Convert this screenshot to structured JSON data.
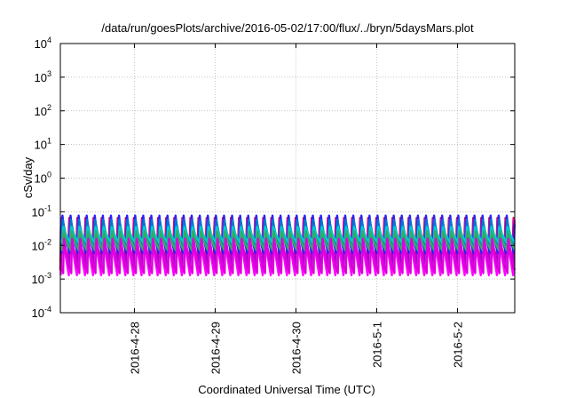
{
  "chart_data": {
    "type": "line",
    "title": "/data/run/goesPlots/archive/2016-05-02/17:00/flux/../bryn/5daysMars.plot",
    "xlabel": "Coordinated Universal Time (UTC)",
    "ylabel": "cSv/day",
    "yscale": "log",
    "ylim": [
      0.0001,
      10000
    ],
    "xlim": [
      "2016-04-27 02:00",
      "2016-05-02 17:00"
    ],
    "x_ticks": [
      "2016-4-28",
      "2016-4-29",
      "2016-4-30",
      "2016-5-1",
      "2016-5-2"
    ],
    "y_ticks": [
      {
        "base": "10",
        "exp": "4"
      },
      {
        "base": "10",
        "exp": "3"
      },
      {
        "base": "10",
        "exp": "2"
      },
      {
        "base": "10",
        "exp": "1"
      },
      {
        "base": "10",
        "exp": "0"
      },
      {
        "base": "10",
        "exp": "-1"
      },
      {
        "base": "10",
        "exp": "-2"
      },
      {
        "base": "10",
        "exp": "-3"
      },
      {
        "base": "10",
        "exp": "-4"
      }
    ],
    "grid": true,
    "legend": "none",
    "periodic_pattern": {
      "cycles_per_day": 10,
      "description": "sawtooth peaks repeating roughly every 2.4 hours"
    },
    "series": [
      {
        "color": "#cc0000",
        "peak": 0.095,
        "trough": 0.0018
      },
      {
        "color": "#ff00ff",
        "peak": 0.09,
        "trough": 0.0013
      },
      {
        "color": "#aa00cc",
        "peak": 0.08,
        "trough": 0.0022
      },
      {
        "color": "#2222ff",
        "peak": 0.1,
        "trough": 0.006
      },
      {
        "color": "#0077cc",
        "peak": 0.07,
        "trough": 0.008
      },
      {
        "color": "#00cccc",
        "peak": 0.04,
        "trough": 0.012
      },
      {
        "color": "#33aa66",
        "peak": 0.03,
        "trough": 0.007
      },
      {
        "color": "#dd00dd",
        "peak": 0.02,
        "trough": 0.0015
      }
    ]
  }
}
